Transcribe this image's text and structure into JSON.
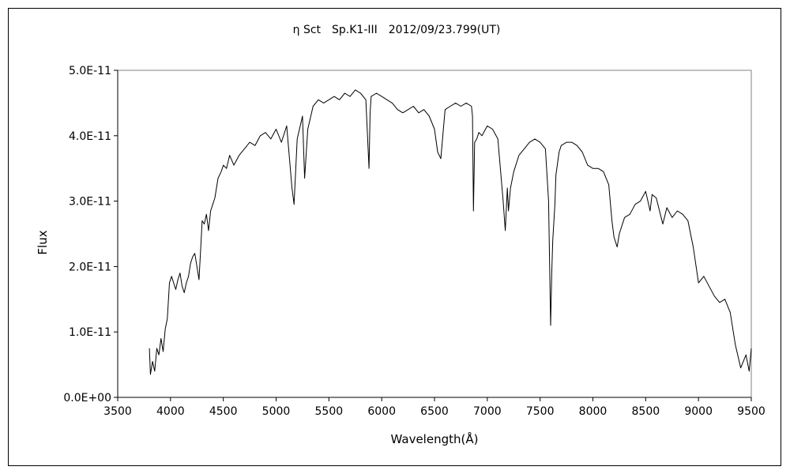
{
  "chart_data": {
    "type": "line",
    "title": "η Sct　Sp.K1-III　2012/09/23.799(UT)",
    "xlabel": "Wavelength(Å)",
    "ylabel": "Flux",
    "xlim": [
      3500,
      9500
    ],
    "ylim": [
      0,
      5e-11
    ],
    "x_ticks": [
      3500,
      4000,
      4500,
      5000,
      5500,
      6000,
      6500,
      7000,
      7500,
      8000,
      8500,
      9000,
      9500
    ],
    "x_tick_labels": [
      "3500",
      "4000",
      "4500",
      "5000",
      "5500",
      "6000",
      "6500",
      "7000",
      "7500",
      "8000",
      "8500",
      "9000",
      "9500"
    ],
    "y_ticks": [
      0,
      1e-11,
      2e-11,
      3e-11,
      4e-11,
      5e-11
    ],
    "y_tick_labels": [
      "0.0E+00",
      "1.0E-11",
      "2.0E-11",
      "3.0E-11",
      "4.0E-11",
      "5.0E-11"
    ],
    "grid": false,
    "legend": "none",
    "line_color": "#000000",
    "series": [
      {
        "x": [
          3800,
          3810,
          3830,
          3850,
          3870,
          3890,
          3910,
          3930,
          3950,
          3970,
          3990,
          4010,
          4030,
          4050,
          4070,
          4090,
          4110,
          4130,
          4150,
          4170,
          4190,
          4210,
          4230,
          4250,
          4270,
          4290,
          4300,
          4320,
          4340,
          4360,
          4380,
          4400,
          4420,
          4450,
          4480,
          4500,
          4530,
          4560,
          4600,
          4650,
          4700,
          4750,
          4800,
          4850,
          4900,
          4950,
          5000,
          5050,
          5100,
          5150,
          5170,
          5200,
          5250,
          5270,
          5300,
          5350,
          5400,
          5450,
          5500,
          5550,
          5600,
          5650,
          5700,
          5750,
          5800,
          5850,
          5880,
          5890,
          5900,
          5950,
          6000,
          6050,
          6100,
          6150,
          6200,
          6250,
          6300,
          6350,
          6400,
          6450,
          6500,
          6530,
          6560,
          6600,
          6650,
          6700,
          6750,
          6800,
          6850,
          6860,
          6869,
          6880,
          6900,
          6920,
          6950,
          7000,
          7050,
          7100,
          7150,
          7170,
          7190,
          7200,
          7220,
          7250,
          7300,
          7350,
          7400,
          7450,
          7500,
          7550,
          7580,
          7600,
          7610,
          7620,
          7640,
          7650,
          7680,
          7700,
          7750,
          7800,
          7850,
          7900,
          7950,
          8000,
          8050,
          8100,
          8150,
          8180,
          8200,
          8230,
          8250,
          8300,
          8350,
          8400,
          8450,
          8500,
          8542,
          8560,
          8600,
          8662,
          8700,
          8750,
          8800,
          8850,
          8900,
          8950,
          9000,
          9050,
          9100,
          9150,
          9200,
          9250,
          9300,
          9350,
          9400,
          9450,
          9480,
          9500
        ],
        "y": [
          7.5e-12,
          3.5e-12,
          5.5e-12,
          4e-12,
          7.5e-12,
          6.5e-12,
          9e-12,
          7e-12,
          1.05e-11,
          1.2e-11,
          1.75e-11,
          1.85e-11,
          1.75e-11,
          1.65e-11,
          1.8e-11,
          1.9e-11,
          1.7e-11,
          1.6e-11,
          1.75e-11,
          1.85e-11,
          2.05e-11,
          2.15e-11,
          2.2e-11,
          2e-11,
          1.8e-11,
          2.4e-11,
          2.7e-11,
          2.65e-11,
          2.8e-11,
          2.55e-11,
          2.85e-11,
          2.95e-11,
          3.05e-11,
          3.35e-11,
          3.45e-11,
          3.55e-11,
          3.5e-11,
          3.7e-11,
          3.55e-11,
          3.7e-11,
          3.8e-11,
          3.9e-11,
          3.85e-11,
          4e-11,
          4.05e-11,
          3.95e-11,
          4.1e-11,
          3.9e-11,
          4.15e-11,
          3.2e-11,
          2.95e-11,
          3.95e-11,
          4.3e-11,
          3.35e-11,
          4.1e-11,
          4.45e-11,
          4.55e-11,
          4.5e-11,
          4.55e-11,
          4.6e-11,
          4.55e-11,
          4.65e-11,
          4.6e-11,
          4.7e-11,
          4.65e-11,
          4.55e-11,
          3.5e-11,
          4.35e-11,
          4.6e-11,
          4.65e-11,
          4.6e-11,
          4.55e-11,
          4.5e-11,
          4.4e-11,
          4.35e-11,
          4.4e-11,
          4.45e-11,
          4.35e-11,
          4.4e-11,
          4.3e-11,
          4.1e-11,
          3.75e-11,
          3.65e-11,
          4.4e-11,
          4.45e-11,
          4.5e-11,
          4.45e-11,
          4.5e-11,
          4.45e-11,
          4.3e-11,
          2.85e-11,
          3.9e-11,
          3.95e-11,
          4.05e-11,
          4e-11,
          4.15e-11,
          4.1e-11,
          3.95e-11,
          3e-11,
          2.55e-11,
          3.2e-11,
          2.85e-11,
          3.2e-11,
          3.45e-11,
          3.7e-11,
          3.8e-11,
          3.9e-11,
          3.95e-11,
          3.9e-11,
          3.8e-11,
          3e-11,
          1.1e-11,
          1.9e-11,
          2.4e-11,
          2.95e-11,
          3.4e-11,
          3.75e-11,
          3.85e-11,
          3.9e-11,
          3.9e-11,
          3.85e-11,
          3.75e-11,
          3.55e-11,
          3.5e-11,
          3.5e-11,
          3.45e-11,
          3.25e-11,
          2.7e-11,
          2.45e-11,
          2.3e-11,
          2.5e-11,
          2.75e-11,
          2.8e-11,
          2.95e-11,
          3e-11,
          3.15e-11,
          2.85e-11,
          3.1e-11,
          3.05e-11,
          2.65e-11,
          2.9e-11,
          2.75e-11,
          2.85e-11,
          2.8e-11,
          2.7e-11,
          2.3e-11,
          1.75e-11,
          1.85e-11,
          1.7e-11,
          1.55e-11,
          1.45e-11,
          1.5e-11,
          1.3e-11,
          8e-12,
          4.5e-12,
          6.5e-12,
          4e-12,
          7.5e-12
        ]
      }
    ]
  }
}
